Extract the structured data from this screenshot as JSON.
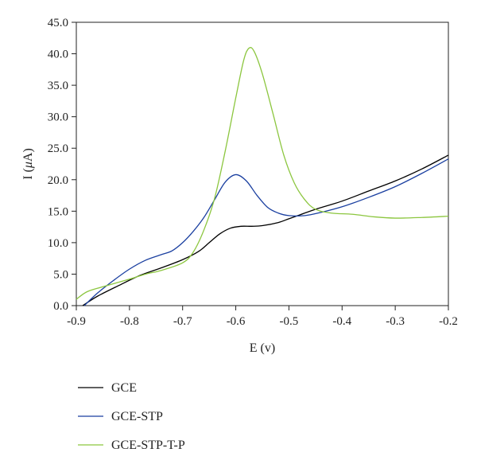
{
  "chart_data": {
    "type": "line",
    "xlabel": "E (v)",
    "ylabel_prefix": "I (",
    "ylabel_mu": "μ",
    "ylabel_suffix": "A)",
    "xlim": [
      -0.9,
      -0.2
    ],
    "ylim": [
      0,
      45
    ],
    "x_ticks": [
      -0.9,
      -0.8,
      -0.7,
      -0.6,
      -0.5,
      -0.4,
      -0.3,
      -0.2
    ],
    "x_tick_labels": [
      "-0.9",
      "-0.8",
      "-0.7",
      "-0.6",
      "-0.5",
      "-0.4",
      "-0.3",
      "-0.2"
    ],
    "y_ticks": [
      0,
      5,
      10,
      15,
      20,
      25,
      30,
      35,
      40,
      45
    ],
    "y_tick_labels": [
      "0.0",
      "5.0",
      "10.0",
      "15.0",
      "20.0",
      "25.0",
      "30.0",
      "35.0",
      "40.0",
      "45.0"
    ],
    "grid": false,
    "legend_position": "bottom-left",
    "series": [
      {
        "name": "GCE",
        "color": "#000000",
        "points": [
          [
            -0.888,
            0
          ],
          [
            -0.86,
            1.5
          ],
          [
            -0.82,
            3.2
          ],
          [
            -0.78,
            4.8
          ],
          [
            -0.74,
            6.0
          ],
          [
            -0.7,
            7.3
          ],
          [
            -0.67,
            8.6
          ],
          [
            -0.65,
            10.0
          ],
          [
            -0.63,
            11.4
          ],
          [
            -0.61,
            12.3
          ],
          [
            -0.59,
            12.6
          ],
          [
            -0.57,
            12.6
          ],
          [
            -0.55,
            12.7
          ],
          [
            -0.52,
            13.2
          ],
          [
            -0.5,
            13.8
          ],
          [
            -0.48,
            14.4
          ],
          [
            -0.45,
            15.3
          ],
          [
            -0.4,
            16.6
          ],
          [
            -0.35,
            18.2
          ],
          [
            -0.3,
            19.8
          ],
          [
            -0.25,
            21.7
          ],
          [
            -0.2,
            23.9
          ]
        ]
      },
      {
        "name": "GCE-STP",
        "color": "#1a3fa0",
        "points": [
          [
            -0.885,
            0
          ],
          [
            -0.86,
            2.0
          ],
          [
            -0.83,
            4.0
          ],
          [
            -0.8,
            5.8
          ],
          [
            -0.77,
            7.2
          ],
          [
            -0.74,
            8.1
          ],
          [
            -0.72,
            8.7
          ],
          [
            -0.7,
            10.0
          ],
          [
            -0.68,
            11.8
          ],
          [
            -0.66,
            14.0
          ],
          [
            -0.64,
            16.8
          ],
          [
            -0.62,
            19.6
          ],
          [
            -0.6,
            20.8
          ],
          [
            -0.58,
            19.8
          ],
          [
            -0.56,
            17.5
          ],
          [
            -0.54,
            15.6
          ],
          [
            -0.52,
            14.7
          ],
          [
            -0.5,
            14.3
          ],
          [
            -0.47,
            14.3
          ],
          [
            -0.44,
            14.8
          ],
          [
            -0.4,
            15.7
          ],
          [
            -0.35,
            17.2
          ],
          [
            -0.3,
            18.9
          ],
          [
            -0.25,
            21.0
          ],
          [
            -0.2,
            23.3
          ]
        ]
      },
      {
        "name": "GCE-STP-T-P",
        "color": "#8cc63f",
        "points": [
          [
            -0.9,
            1.0
          ],
          [
            -0.88,
            2.2
          ],
          [
            -0.85,
            3.0
          ],
          [
            -0.8,
            4.2
          ],
          [
            -0.77,
            5.0
          ],
          [
            -0.74,
            5.6
          ],
          [
            -0.7,
            6.8
          ],
          [
            -0.68,
            8.5
          ],
          [
            -0.66,
            12.0
          ],
          [
            -0.64,
            17.0
          ],
          [
            -0.62,
            24.5
          ],
          [
            -0.6,
            33.0
          ],
          [
            -0.585,
            39.0
          ],
          [
            -0.575,
            40.9
          ],
          [
            -0.565,
            40.3
          ],
          [
            -0.55,
            36.8
          ],
          [
            -0.53,
            30.5
          ],
          [
            -0.51,
            24.0
          ],
          [
            -0.49,
            19.5
          ],
          [
            -0.47,
            16.8
          ],
          [
            -0.45,
            15.3
          ],
          [
            -0.42,
            14.7
          ],
          [
            -0.38,
            14.5
          ],
          [
            -0.34,
            14.1
          ],
          [
            -0.3,
            13.9
          ],
          [
            -0.25,
            14.0
          ],
          [
            -0.2,
            14.2
          ]
        ]
      }
    ]
  }
}
